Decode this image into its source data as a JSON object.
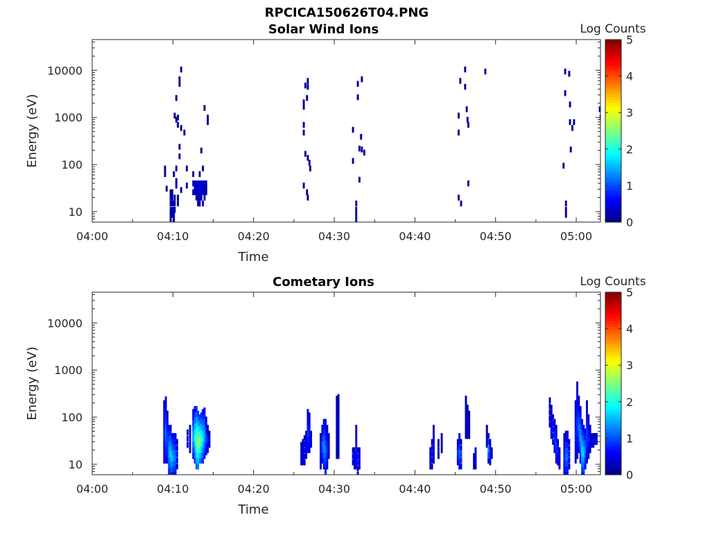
{
  "figure_title": "RPCICA150626T04.PNG",
  "chart_data": [
    {
      "type": "heatmap",
      "title": "Solar Wind Ions",
      "xlabel": "Time",
      "ylabel": "Energy (eV)",
      "x_ticks": [
        "04:00",
        "04:10",
        "04:20",
        "04:30",
        "04:40",
        "04:50",
        "05:00"
      ],
      "xlim_minutes": [
        0,
        63
      ],
      "y_scale": "log",
      "y_ticks": [
        "10",
        "100",
        "1000",
        "10000"
      ],
      "ylim": [
        6,
        45000
      ],
      "colorbar": {
        "label": "Log Counts",
        "ticks": [
          "0",
          "1",
          "2",
          "3",
          "4",
          "5"
        ],
        "range": [
          0,
          5
        ],
        "colormap": "jet"
      },
      "cells": [
        [
          8.9,
          83,
          0.1
        ],
        [
          8.9,
          63,
          0.1
        ],
        [
          9.1,
          31,
          0.1
        ],
        [
          9.6,
          26,
          0.2
        ],
        [
          9.6,
          20,
          0.3
        ],
        [
          9.6,
          15,
          0.2
        ],
        [
          9.6,
          11,
          0.3
        ],
        [
          9.6,
          8.6,
          0.2
        ],
        [
          9.6,
          6.5,
          0.3
        ],
        [
          9.8,
          26,
          0.2
        ],
        [
          9.8,
          20,
          0.2
        ],
        [
          9.8,
          15,
          0.1
        ],
        [
          9.8,
          11,
          0.2
        ],
        [
          9.8,
          8.6,
          0.2
        ],
        [
          10,
          63,
          0.1
        ],
        [
          10,
          15,
          0.2
        ],
        [
          10,
          11,
          0.3
        ],
        [
          10,
          8.6,
          0.2
        ],
        [
          10,
          6.5,
          0.2
        ],
        [
          10.1,
          1100,
          0.1
        ],
        [
          10.1,
          20,
          0.2
        ],
        [
          10.1,
          15,
          0.2
        ],
        [
          10.1,
          11,
          0.2
        ],
        [
          10.3,
          2600,
          0.1
        ],
        [
          10.3,
          900,
          0.1
        ],
        [
          10.3,
          83,
          0.1
        ],
        [
          10.3,
          45,
          0.2
        ],
        [
          10.3,
          36,
          0.2
        ],
        [
          10.5,
          700,
          0.1
        ],
        [
          10.5,
          1000,
          0.1
        ],
        [
          10.5,
          20,
          0.1
        ],
        [
          10.5,
          15,
          0.1
        ],
        [
          10.7,
          6500,
          0.1
        ],
        [
          10.7,
          5200,
          0.1
        ],
        [
          10.7,
          240,
          0.1
        ],
        [
          10.7,
          150,
          0.1
        ],
        [
          10.9,
          10500,
          0.1
        ],
        [
          10.9,
          600,
          0.1
        ],
        [
          10.9,
          29,
          0.1
        ],
        [
          11.3,
          480,
          0.1
        ],
        [
          11.6,
          83,
          0.1
        ],
        [
          11.6,
          36,
          0.1
        ],
        [
          12.4,
          63,
          0.1
        ],
        [
          12.4,
          40,
          0.2
        ],
        [
          12.4,
          26,
          0.2
        ],
        [
          12.6,
          40,
          0.2
        ],
        [
          12.6,
          36,
          0.3
        ],
        [
          12.6,
          31,
          0.4
        ],
        [
          12.6,
          26,
          0.3
        ],
        [
          12.8,
          40,
          0.3
        ],
        [
          12.8,
          36,
          0.4
        ],
        [
          12.8,
          31,
          0.4
        ],
        [
          12.8,
          26,
          0.3
        ],
        [
          12.8,
          20,
          0.3
        ],
        [
          13,
          40,
          0.3
        ],
        [
          13,
          36,
          0.4
        ],
        [
          13,
          31,
          0.4
        ],
        [
          13,
          26,
          0.3
        ],
        [
          13,
          20,
          0.2
        ],
        [
          13,
          15,
          0.2
        ],
        [
          13.2,
          63,
          0.1
        ],
        [
          13.2,
          40,
          0.3
        ],
        [
          13.2,
          36,
          0.4
        ],
        [
          13.2,
          31,
          0.5
        ],
        [
          13.2,
          26,
          0.4
        ],
        [
          13.2,
          20,
          0.3
        ],
        [
          13.2,
          15,
          0.2
        ],
        [
          13.4,
          200,
          0.1
        ],
        [
          13.4,
          40,
          0.3
        ],
        [
          13.4,
          36,
          0.4
        ],
        [
          13.4,
          31,
          0.4
        ],
        [
          13.4,
          26,
          0.3
        ],
        [
          13.4,
          20,
          0.3
        ],
        [
          13.6,
          83,
          0.1
        ],
        [
          13.6,
          40,
          0.3
        ],
        [
          13.6,
          36,
          0.3
        ],
        [
          13.6,
          31,
          0.3
        ],
        [
          13.6,
          26,
          0.3
        ],
        [
          13.6,
          15,
          0.2
        ],
        [
          13.8,
          1600,
          0.1
        ],
        [
          13.8,
          40,
          0.3
        ],
        [
          13.8,
          36,
          0.4
        ],
        [
          13.8,
          31,
          0.4
        ],
        [
          13.8,
          26,
          0.3
        ],
        [
          13.8,
          20,
          0.2
        ],
        [
          14,
          40,
          0.3
        ],
        [
          14,
          36,
          0.3
        ],
        [
          14,
          31,
          0.3
        ],
        [
          14,
          26,
          0.2
        ],
        [
          14.2,
          1000,
          0.1
        ],
        [
          14.2,
          800,
          0.1
        ],
        [
          26.1,
          2100,
          0.1
        ],
        [
          26.1,
          1700,
          0.1
        ],
        [
          26.1,
          700,
          0.1
        ],
        [
          26.1,
          480,
          0.1
        ],
        [
          26.1,
          36,
          0.1
        ],
        [
          26.3,
          4800,
          0.1
        ],
        [
          26.3,
          170,
          0.1
        ],
        [
          26.5,
          2600,
          0.1
        ],
        [
          26.5,
          26,
          0.1
        ],
        [
          26.6,
          6000,
          0.1
        ],
        [
          26.6,
          4500,
          0.1
        ],
        [
          26.6,
          140,
          0.1
        ],
        [
          26.6,
          20,
          0.1
        ],
        [
          26.8,
          110,
          0.1
        ],
        [
          33.3,
          6500,
          0.1
        ],
        [
          26.9,
          83,
          0.1
        ],
        [
          32.2,
          550,
          0.1
        ],
        [
          32.2,
          120,
          0.1
        ],
        [
          32.6,
          15,
          0.2
        ],
        [
          32.6,
          11,
          0.3
        ],
        [
          32.6,
          8.6,
          0.2
        ],
        [
          32.6,
          6.5,
          0.2
        ],
        [
          32.8,
          5200,
          0.1
        ],
        [
          32.8,
          2700,
          0.1
        ],
        [
          33,
          220,
          0.1
        ],
        [
          33,
          48,
          0.1
        ],
        [
          33.2,
          390,
          0.1
        ],
        [
          33.3,
          210,
          0.1
        ],
        [
          33.6,
          180,
          0.1
        ],
        [
          45.3,
          480,
          0.1
        ],
        [
          45.3,
          1100,
          0.1
        ],
        [
          45.3,
          20,
          0.1
        ],
        [
          45.5,
          6000,
          0.1
        ],
        [
          45.6,
          15,
          0.1
        ],
        [
          46.1,
          10500,
          0.1
        ],
        [
          46.1,
          4500,
          0.1
        ],
        [
          46.3,
          1500,
          0.1
        ],
        [
          46.4,
          900,
          0.1
        ],
        [
          46.5,
          700,
          0.1
        ],
        [
          46.5,
          40,
          0.1
        ],
        [
          48.6,
          9500,
          0.1
        ],
        [
          58.3,
          95,
          0.1
        ],
        [
          58.5,
          9500,
          0.1
        ],
        [
          58.5,
          3300,
          0.1
        ],
        [
          58.6,
          15,
          0.2
        ],
        [
          58.6,
          11,
          0.2
        ],
        [
          58.6,
          8.6,
          0.2
        ],
        [
          59,
          8500,
          0.1
        ],
        [
          59.1,
          1900,
          0.1
        ],
        [
          59.1,
          800,
          0.1
        ],
        [
          59.2,
          210,
          0.1
        ],
        [
          59.4,
          600,
          0.1
        ],
        [
          59.6,
          800,
          0.1
        ],
        [
          62.8,
          1500,
          0.1
        ],
        [
          62.9,
          1000,
          0.1
        ]
      ]
    },
    {
      "type": "heatmap",
      "title": "Cometary Ions",
      "xlabel": "Time",
      "ylabel": "Energy (eV)",
      "x_ticks": [
        "04:00",
        "04:10",
        "04:20",
        "04:30",
        "04:40",
        "04:50",
        "05:00"
      ],
      "xlim_minutes": [
        0,
        63
      ],
      "y_scale": "log",
      "y_ticks": [
        "10",
        "100",
        "1000",
        "10000"
      ],
      "ylim": [
        6,
        45000
      ],
      "colorbar": {
        "label": "Log Counts",
        "ticks": [
          "0",
          "1",
          "2",
          "3",
          "4",
          "5"
        ],
        "range": [
          0,
          5
        ],
        "colormap": "jet"
      },
      "columns": [
        [
          8.8,
          200,
          12,
          0.3,
          0.8
        ],
        [
          9,
          240,
          12,
          0.4,
          1.2
        ],
        [
          9.2,
          120,
          12,
          0.3,
          1.0
        ],
        [
          9.4,
          60,
          7,
          0.5,
          1.5
        ],
        [
          9.6,
          60,
          6,
          0.6,
          1.7
        ],
        [
          9.8,
          40,
          6,
          0.6,
          1.6
        ],
        [
          10,
          40,
          6,
          0.5,
          1.4
        ],
        [
          10.2,
          40,
          6,
          0.5,
          1.2
        ],
        [
          10.4,
          30,
          9,
          0.4,
          0.8
        ],
        [
          11.7,
          48,
          26,
          0.2,
          0.5
        ],
        [
          12,
          60,
          20,
          0.3,
          0.7
        ],
        [
          12.4,
          130,
          15,
          0.4,
          1.5
        ],
        [
          12.6,
          150,
          12,
          0.6,
          2.0
        ],
        [
          12.8,
          150,
          9,
          0.8,
          2.5
        ],
        [
          13,
          120,
          9,
          0.9,
          2.7
        ],
        [
          13.2,
          100,
          12,
          0.9,
          2.6
        ],
        [
          13.4,
          110,
          12,
          0.8,
          2.3
        ],
        [
          13.6,
          130,
          12,
          0.6,
          1.9
        ],
        [
          13.8,
          140,
          15,
          0.5,
          1.6
        ],
        [
          14,
          90,
          18,
          0.4,
          1.1
        ],
        [
          14.2,
          60,
          20,
          0.3,
          0.8
        ],
        [
          14.4,
          45,
          26,
          0.2,
          0.5
        ],
        [
          25.8,
          26,
          11,
          0.2,
          0.4
        ],
        [
          26,
          30,
          11,
          0.3,
          0.6
        ],
        [
          26.2,
          36,
          11,
          0.3,
          0.6
        ],
        [
          26.4,
          45,
          15,
          0.3,
          0.7
        ],
        [
          26.6,
          130,
          20,
          0.4,
          0.9
        ],
        [
          26.8,
          110,
          20,
          0.3,
          0.8
        ],
        [
          27,
          45,
          26,
          0.3,
          0.6
        ],
        [
          28.2,
          40,
          9,
          0.2,
          0.6
        ],
        [
          28.4,
          60,
          12,
          0.4,
          1.1
        ],
        [
          28.6,
          80,
          9,
          0.5,
          1.4
        ],
        [
          28.8,
          80,
          6,
          0.4,
          1.3
        ],
        [
          29,
          60,
          9,
          0.3,
          0.9
        ],
        [
          29.2,
          40,
          15,
          0.2,
          0.5
        ],
        [
          30.2,
          250,
          15,
          0.2,
          0.4
        ],
        [
          30.4,
          270,
          15,
          0.2,
          0.4
        ],
        [
          32.2,
          20,
          11,
          0.3,
          0.6
        ],
        [
          32.4,
          20,
          9,
          0.3,
          0.7
        ],
        [
          32.6,
          60,
          9,
          0.3,
          0.8
        ],
        [
          32.8,
          20,
          6,
          0.3,
          0.8
        ],
        [
          33,
          20,
          9,
          0.2,
          0.5
        ],
        [
          41.8,
          20,
          9,
          0.3,
          0.6
        ],
        [
          42,
          30,
          9,
          0.3,
          0.6
        ],
        [
          42.2,
          60,
          12,
          0.2,
          0.5
        ],
        [
          42.8,
          30,
          15,
          0.2,
          0.4
        ],
        [
          43.2,
          40,
          20,
          0.2,
          0.3
        ],
        [
          45.2,
          30,
          11,
          0.3,
          0.9
        ],
        [
          45.4,
          40,
          9,
          0.4,
          1.2
        ],
        [
          45.6,
          30,
          9,
          0.3,
          1.0
        ],
        [
          46.2,
          250,
          40,
          0.2,
          0.4
        ],
        [
          46.4,
          160,
          40,
          0.2,
          0.4
        ],
        [
          46.6,
          120,
          40,
          0.2,
          0.4
        ],
        [
          47.2,
          15,
          9,
          0.2,
          0.6
        ],
        [
          47.4,
          20,
          9,
          0.2,
          0.5
        ],
        [
          48.8,
          60,
          26,
          0.2,
          0.5
        ],
        [
          49,
          40,
          12,
          0.3,
          1.5
        ],
        [
          49.2,
          30,
          11,
          0.3,
          0.9
        ],
        [
          49.4,
          20,
          15,
          0.2,
          0.5
        ],
        [
          56.6,
          230,
          70,
          0.2,
          0.4
        ],
        [
          56.8,
          160,
          40,
          0.3,
          0.6
        ],
        [
          57,
          100,
          30,
          0.3,
          0.7
        ],
        [
          57.2,
          80,
          20,
          0.4,
          0.9
        ],
        [
          57.4,
          60,
          12,
          0.4,
          1.0
        ],
        [
          57.6,
          30,
          11,
          0.3,
          0.8
        ],
        [
          57.8,
          20,
          9,
          0.3,
          0.6
        ],
        [
          58.4,
          40,
          6,
          0.3,
          0.8
        ],
        [
          58.6,
          45,
          6,
          0.4,
          1.2
        ],
        [
          58.8,
          45,
          6,
          0.4,
          1.2
        ],
        [
          59,
          30,
          9,
          0.3,
          0.8
        ],
        [
          59.8,
          200,
          12,
          0.3,
          0.8
        ],
        [
          60,
          500,
          15,
          0.3,
          0.9
        ],
        [
          60.2,
          250,
          20,
          0.3,
          1.2
        ],
        [
          60.4,
          150,
          12,
          0.4,
          1.5
        ],
        [
          60.6,
          80,
          6,
          0.5,
          1.8
        ],
        [
          60.8,
          60,
          6,
          0.5,
          1.7
        ],
        [
          61,
          50,
          9,
          0.4,
          1.3
        ],
        [
          61.2,
          200,
          12,
          0.3,
          1.0
        ],
        [
          61.4,
          100,
          15,
          0.3,
          0.8
        ],
        [
          61.6,
          60,
          20,
          0.3,
          0.7
        ],
        [
          61.8,
          40,
          26,
          0.3,
          0.6
        ],
        [
          62,
          40,
          26,
          0.3,
          0.7
        ],
        [
          62.2,
          40,
          30,
          0.3,
          0.8
        ],
        [
          62.4,
          40,
          30,
          0.3,
          0.9
        ]
      ]
    }
  ]
}
